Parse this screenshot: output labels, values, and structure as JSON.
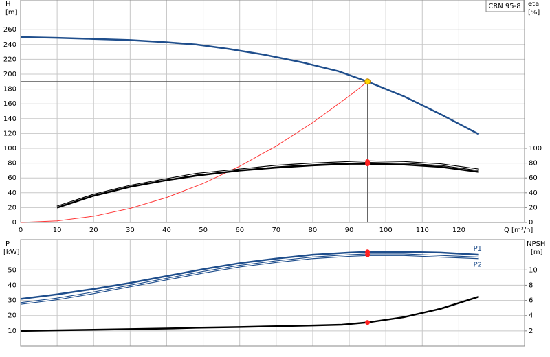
{
  "chart_data": [
    {
      "type": "line",
      "label": "CRN 95-8",
      "x_label": "Q [m³/h]",
      "y_label": "H",
      "y_unit": "[m]",
      "y2_label": "eta",
      "y2_unit": "[%]",
      "xlim": [
        0,
        138
      ],
      "xticks": [
        0,
        10,
        20,
        30,
        40,
        50,
        60,
        70,
        80,
        90,
        100,
        110,
        120
      ],
      "ylim": [
        0,
        300
      ],
      "yticks": [
        0,
        20,
        40,
        60,
        80,
        100,
        120,
        140,
        160,
        180,
        200,
        220,
        240,
        260
      ],
      "y2lim": [
        0,
        300
      ],
      "y2ticks": [
        0,
        20,
        40,
        60,
        80,
        100
      ],
      "grid": true,
      "operating_point": {
        "q": 95,
        "h": 190
      },
      "series": [
        {
          "color": "#1f4e8c",
          "x": [
            0,
            10,
            20,
            30,
            40,
            48,
            57,
            67,
            77,
            87,
            95,
            105,
            115,
            125.5
          ],
          "values": [
            250,
            249,
            247.5,
            246,
            243,
            240,
            234,
            226,
            216,
            204,
            190,
            170,
            146,
            119
          ]
        },
        {
          "color": "#ff3333",
          "x": [
            0,
            10,
            20,
            30,
            40,
            50,
            60,
            70,
            80,
            90,
            95
          ],
          "values": [
            0,
            2.1,
            8.4,
            19,
            33.7,
            52.6,
            75.8,
            103,
            134.7,
            170.5,
            190
          ]
        },
        {
          "color": "#000000",
          "axis": "y2",
          "style": "double",
          "x": [
            10,
            20,
            30,
            40,
            48,
            60,
            70,
            80,
            90,
            95,
            105,
            115,
            125.5
          ],
          "values": [
            21,
            37,
            49,
            58,
            65,
            71,
            76,
            79,
            81,
            82,
            81,
            78,
            71
          ]
        },
        {
          "color": "#000000",
          "axis": "y2",
          "x": [
            10,
            20,
            30,
            40,
            48,
            60,
            70,
            80,
            90,
            95,
            105,
            115,
            125.5
          ],
          "values": [
            20,
            36,
            48,
            57,
            63,
            70,
            74,
            77,
            79,
            79,
            78,
            75,
            68
          ]
        }
      ]
    },
    {
      "type": "line",
      "y_label": "P",
      "y_unit": "[kW]",
      "y2_label": "NPSH",
      "y2_unit": "[m]",
      "xlim": [
        0,
        138
      ],
      "xticks": [
        0,
        10,
        20,
        30,
        40,
        50,
        60,
        70,
        80,
        90,
        100,
        110,
        120
      ],
      "ylim": [
        0,
        70
      ],
      "yticks": [
        10,
        20,
        30,
        40,
        50
      ],
      "y2lim": [
        0,
        14
      ],
      "y2ticks": [
        2,
        4,
        6,
        8,
        10
      ],
      "grid": true,
      "operating_point": {
        "q": 95
      },
      "series": [
        {
          "name": "P1",
          "color": "#1f4e8c",
          "x": [
            0,
            10,
            20,
            30,
            40,
            50,
            60,
            70,
            80,
            90,
            95,
            105,
            115,
            125.5
          ],
          "values": [
            31,
            34,
            37.5,
            41.5,
            46,
            50.5,
            54.5,
            57.5,
            60,
            61.5,
            62,
            62,
            61.5,
            60
          ]
        },
        {
          "name": "P2",
          "color": "#1f4e8c",
          "style": "double",
          "x": [
            0,
            10,
            20,
            30,
            40,
            50,
            60,
            70,
            80,
            90,
            95,
            105,
            115,
            125.5
          ],
          "values": [
            28,
            31,
            35,
            39.5,
            44,
            48.5,
            52.5,
            55.5,
            58,
            59.5,
            60,
            60,
            59,
            58
          ]
        },
        {
          "color": "#000000",
          "axis": "y2",
          "x": [
            0,
            20,
            40,
            48,
            60,
            70,
            80,
            88,
            95,
            105,
            115,
            125.5
          ],
          "values": [
            2.0,
            2.15,
            2.3,
            2.4,
            2.5,
            2.6,
            2.7,
            2.8,
            3.1,
            3.8,
            4.9,
            6.5
          ]
        }
      ]
    }
  ]
}
